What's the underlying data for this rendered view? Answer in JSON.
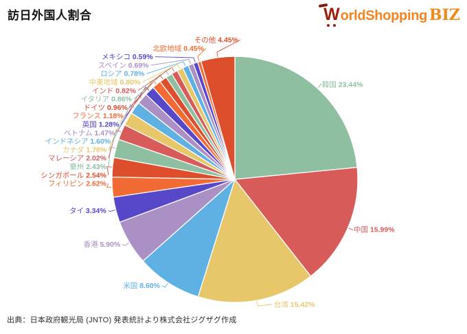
{
  "title": "訪日外国人割合",
  "logo": {
    "w": "W",
    "rest": "orldShopping",
    "biz": "BIZ"
  },
  "footer": {
    "source": "出典：日本政府観光局 (JNTO) 発表統計より株式会社ジグザグ作成"
  },
  "chart_data": {
    "type": "pie",
    "title": "訪日外国人割合",
    "unit": "%",
    "start_angle_deg": 0,
    "direction": "clockwise",
    "legend": "none",
    "label_style": "outside with colored leader lines, name + percent",
    "slices": [
      {
        "label": "韓国",
        "value": 23.44
      },
      {
        "label": "中国",
        "value": 15.99
      },
      {
        "label": "台湾",
        "value": 15.42
      },
      {
        "label": "米国",
        "value": 8.6
      },
      {
        "label": "香港",
        "value": 5.9
      },
      {
        "label": "タイ",
        "value": 3.34
      },
      {
        "label": "フィリピン",
        "value": 2.62
      },
      {
        "label": "シンガポール",
        "value": 2.54
      },
      {
        "label": "豪州",
        "value": 2.43
      },
      {
        "label": "マレーシア",
        "value": 2.02
      },
      {
        "label": "カナダ",
        "value": 1.78
      },
      {
        "label": "インドネシア",
        "value": 1.6
      },
      {
        "label": "ベトナム",
        "value": 1.47
      },
      {
        "label": "英国",
        "value": 1.28
      },
      {
        "label": "フランス",
        "value": 1.18
      },
      {
        "label": "ドイツ",
        "value": 0.96
      },
      {
        "label": "イタリア",
        "value": 0.86
      },
      {
        "label": "インド",
        "value": 0.82
      },
      {
        "label": "中東地域",
        "value": 0.8
      },
      {
        "label": "ロシア",
        "value": 0.78
      },
      {
        "label": "スペイン",
        "value": 0.69
      },
      {
        "label": "メキシコ",
        "value": 0.59
      },
      {
        "label": "北欧地域",
        "value": 0.45
      },
      {
        "label": "その他",
        "value": 4.45
      }
    ],
    "palette": [
      "#8EBFA0",
      "#D75B58",
      "#E8C76A",
      "#60B1E3",
      "#AB90C5",
      "#5747C9",
      "#F26B35",
      "#DD4E2C"
    ],
    "colors": {
      "title_text": "#141414",
      "logo_dark_red": "#9A220C",
      "logo_orange": "#F5831E",
      "source_text": "#2e2e2e"
    }
  }
}
